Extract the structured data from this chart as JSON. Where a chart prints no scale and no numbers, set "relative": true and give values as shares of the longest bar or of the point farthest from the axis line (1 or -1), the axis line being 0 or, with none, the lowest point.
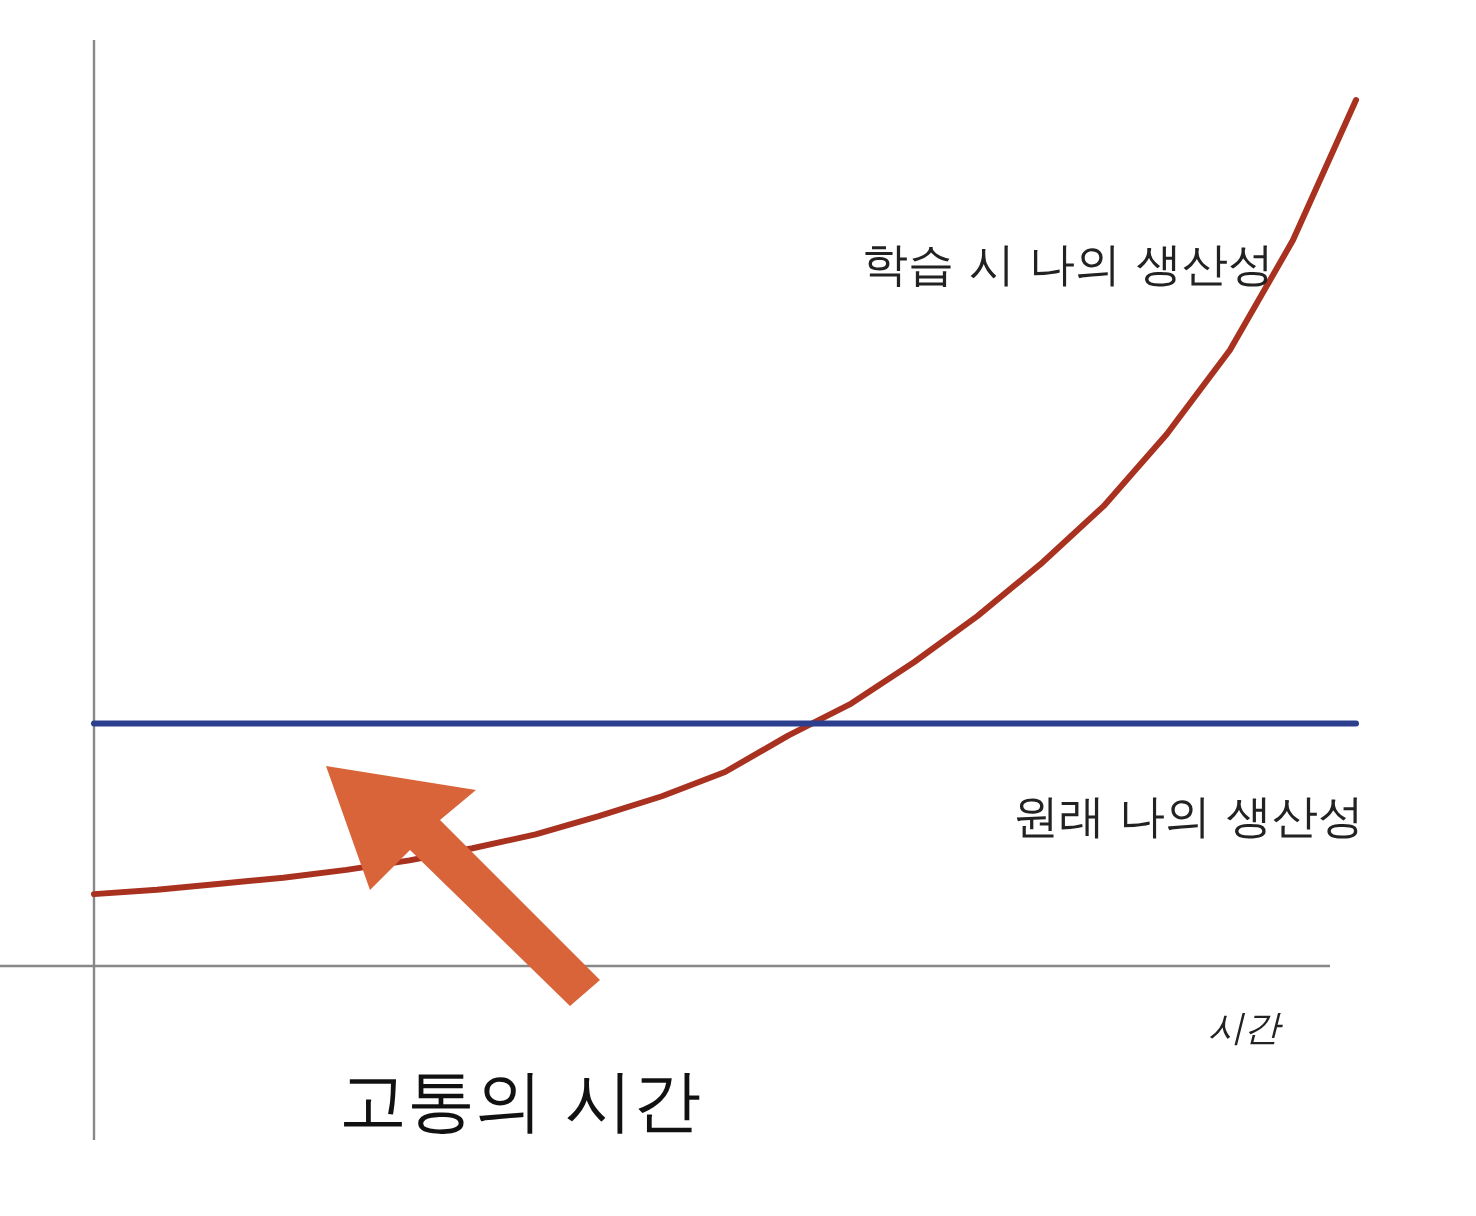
{
  "chart_data": {
    "type": "line",
    "relative": true,
    "xlabel": "시간",
    "categories": [
      null,
      null,
      null,
      null,
      null,
      null,
      null,
      null,
      null,
      null,
      null,
      null,
      null,
      null,
      null,
      null,
      null,
      null,
      null,
      null,
      null
    ],
    "series": [
      {
        "name": "학습 시 나의 생산성",
        "color": "#a8321f",
        "values": [
          0.083,
          0.088,
          0.095,
          0.102,
          0.111,
          0.122,
          0.136,
          0.152,
          0.173,
          0.196,
          0.224,
          0.266,
          0.303,
          0.351,
          0.404,
          0.464,
          0.531,
          0.614,
          0.711,
          0.838,
          1
        ]
      },
      {
        "name": "원래 나의 생산성",
        "color": "#2c3f8f",
        "values": [
          0.28,
          0.28,
          0.28,
          0.28,
          0.28,
          0.28,
          0.28,
          0.28,
          0.28,
          0.28,
          0.28,
          0.28,
          0.28,
          0.28,
          0.28,
          0.28,
          0.28,
          0.28,
          0.28,
          0.28,
          0.28
        ]
      }
    ],
    "annotations": [
      "고통의 시간"
    ],
    "marker": "none",
    "line_style": "solid"
  }
}
